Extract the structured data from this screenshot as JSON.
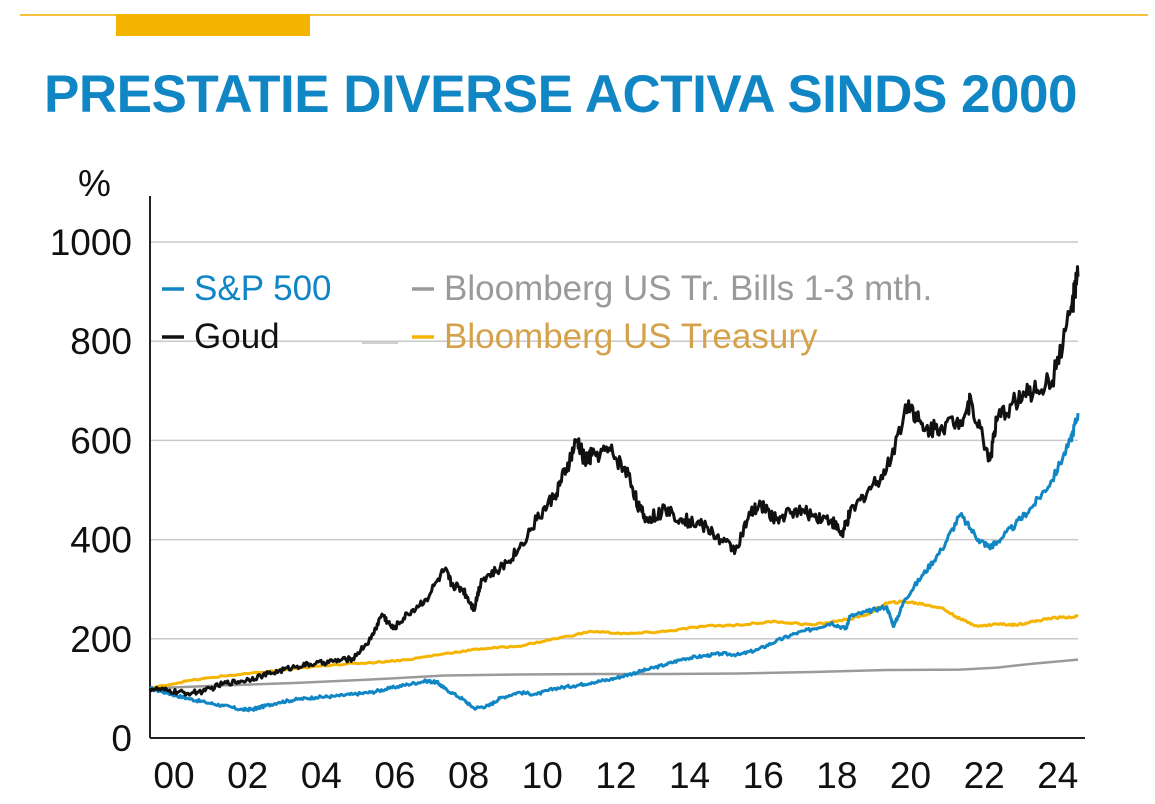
{
  "title": "PRESTATIE DIVERSE ACTIVA SINDS 2000",
  "colors": {
    "accent_blue": "#1186c4",
    "accent_yellow": "#f5b400",
    "legend_yellow_text": "#d4a24a",
    "gray": "#9a9a9a"
  },
  "chart_data": {
    "type": "line",
    "title": "PRESTATIE DIVERSE ACTIVA SINDS 2000",
    "ylabel": "%",
    "xlabel": "",
    "ylim": [
      0,
      1000
    ],
    "xlim": [
      2000,
      2025.2
    ],
    "yticks": [
      "0",
      "200",
      "400",
      "600",
      "800",
      "1000"
    ],
    "xticks": [
      "00",
      "02",
      "04",
      "06",
      "08",
      "10",
      "12",
      "14",
      "16",
      "18",
      "20",
      "22",
      "24"
    ],
    "highlight_xtick": "24",
    "grid": true,
    "legend_placement": "top-left",
    "series": [
      {
        "name": "S&P 500",
        "color": "#1186c4",
        "x": [
          2000,
          2000.5,
          2001,
          2001.5,
          2002,
          2002.5,
          2002.8,
          2003,
          2003.5,
          2004,
          2004.5,
          2005,
          2005.5,
          2006,
          2006.5,
          2007,
          2007.5,
          2007.8,
          2008,
          2008.5,
          2008.8,
          2009.2,
          2009.5,
          2010,
          2010.5,
          2011,
          2011.5,
          2012,
          2012.5,
          2013,
          2013.5,
          2014,
          2014.5,
          2015,
          2015.5,
          2016,
          2016.5,
          2017,
          2017.5,
          2018,
          2018.5,
          2018.9,
          2019,
          2019.5,
          2020,
          2020.2,
          2020.5,
          2021,
          2021.5,
          2022,
          2022.5,
          2022.8,
          2023,
          2023.5,
          2024,
          2024.5,
          2025,
          2025.2
        ],
        "values": [
          100,
          90,
          80,
          72,
          65,
          57,
          58,
          62,
          72,
          78,
          82,
          84,
          88,
          92,
          100,
          108,
          115,
          112,
          100,
          78,
          60,
          65,
          80,
          92,
          88,
          100,
          105,
          112,
          118,
          128,
          138,
          148,
          160,
          165,
          170,
          168,
          178,
          195,
          210,
          220,
          232,
          220,
          245,
          255,
          265,
          225,
          280,
          330,
          380,
          450,
          400,
          385,
          395,
          430,
          470,
          520,
          600,
          655
        ]
      },
      {
        "name": "Goud",
        "color": "#111111",
        "x": [
          2000,
          2000.5,
          2001,
          2001.5,
          2002,
          2002.5,
          2003,
          2003.5,
          2004,
          2004.5,
          2005,
          2005.5,
          2006,
          2006.3,
          2006.6,
          2007,
          2007.5,
          2008,
          2008.2,
          2008.5,
          2008.8,
          2009,
          2009.5,
          2010,
          2010.5,
          2011,
          2011.3,
          2011.6,
          2011.8,
          2012,
          2012.5,
          2013,
          2013.3,
          2013.5,
          2014,
          2014.5,
          2015,
          2015.5,
          2015.9,
          2016.3,
          2016.6,
          2017,
          2017.5,
          2018,
          2018.5,
          2018.8,
          2019,
          2019.5,
          2020,
          2020.6,
          2021,
          2021.5,
          2022,
          2022.3,
          2022.8,
          2023,
          2023.5,
          2024,
          2024.5,
          2025,
          2025.2
        ],
        "values": [
          100,
          95,
          90,
          95,
          110,
          115,
          125,
          135,
          145,
          150,
          155,
          160,
          200,
          250,
          220,
          250,
          280,
          340,
          310,
          300,
          260,
          320,
          340,
          380,
          440,
          490,
          540,
          600,
          560,
          570,
          580,
          530,
          460,
          440,
          460,
          440,
          430,
          400,
          380,
          450,
          470,
          440,
          460,
          450,
          440,
          410,
          450,
          500,
          540,
          680,
          620,
          630,
          640,
          680,
          560,
          640,
          680,
          700,
          720,
          860,
          930
        ]
      },
      {
        "name": "Bloomberg US Tr. Bills 1-3 mth.",
        "color": "#9a9a9a",
        "x": [
          2000,
          2002,
          2004,
          2006,
          2008,
          2010,
          2012,
          2014,
          2016,
          2018,
          2020,
          2022,
          2023,
          2024,
          2025.2
        ],
        "values": [
          100,
          106,
          111,
          118,
          126,
          128,
          129,
          129,
          130,
          133,
          137,
          138,
          142,
          150,
          158
        ]
      },
      {
        "name": "Bloomberg US Treasury",
        "color": "#f5b400",
        "x": [
          2000,
          2001,
          2002,
          2003,
          2004,
          2005,
          2006,
          2007,
          2008,
          2009,
          2010,
          2011,
          2012,
          2013,
          2014,
          2015,
          2016,
          2017,
          2018,
          2019,
          2019.5,
          2020,
          2020.5,
          2021,
          2021.5,
          2022,
          2022.5,
          2023,
          2023.5,
          2024,
          2024.5,
          2025.2
        ],
        "values": [
          100,
          115,
          125,
          132,
          140,
          148,
          152,
          158,
          170,
          180,
          185,
          200,
          215,
          210,
          215,
          225,
          228,
          235,
          228,
          240,
          250,
          272,
          275,
          270,
          262,
          240,
          225,
          230,
          228,
          235,
          242,
          245
        ]
      }
    ]
  }
}
